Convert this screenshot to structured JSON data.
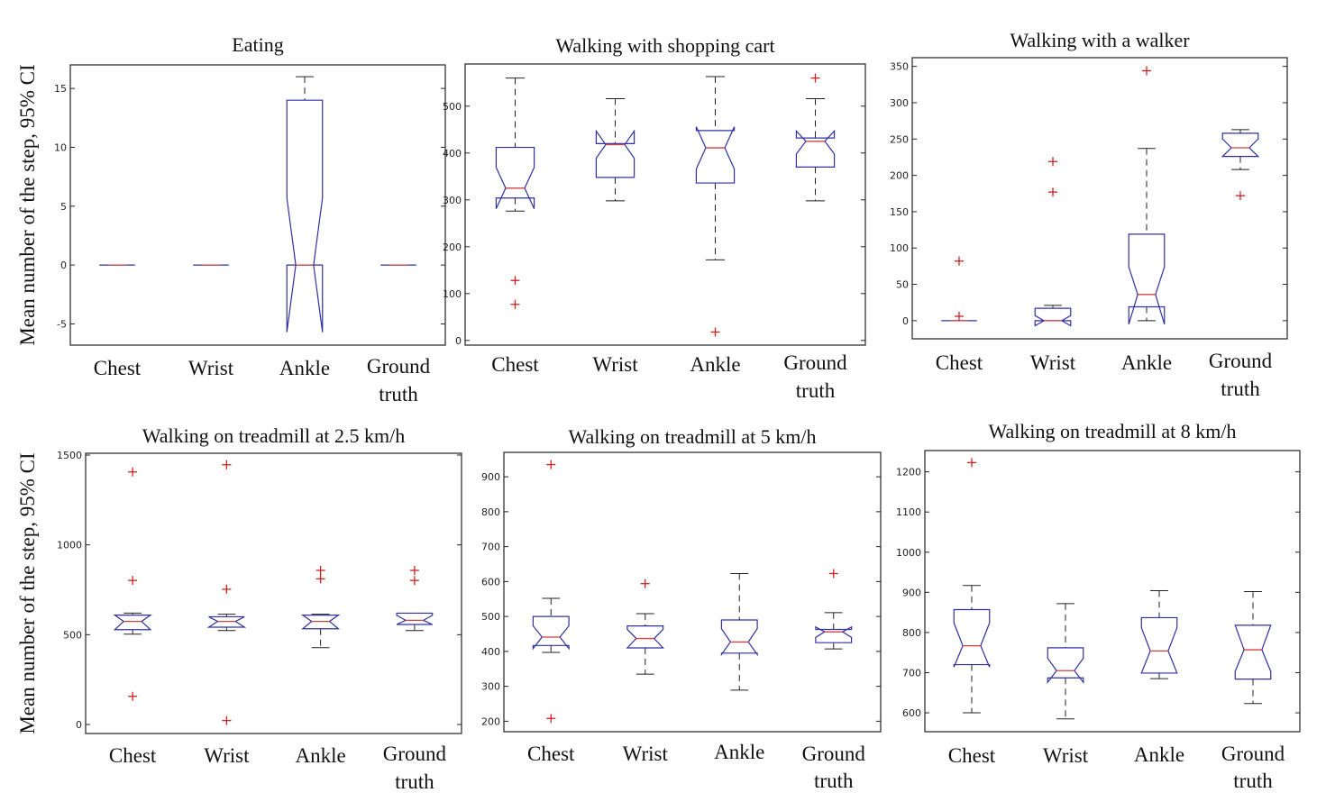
{
  "figure": {
    "ylabel": "Mean number of the step, 95% CI"
  },
  "chart_data": [
    {
      "type": "box",
      "title": "Eating",
      "ylabel": "Mean number of the step, 95% CI",
      "categories": [
        "Chest",
        "Wrist",
        "Ankle",
        "Ground truth"
      ],
      "ylim": [
        -6.8,
        17
      ],
      "yticks": [
        -5,
        0,
        5,
        10,
        15
      ],
      "ytick_labels": [
        "-5",
        "0",
        "5",
        "10",
        "15"
      ],
      "boxes": [
        {
          "whisker_low": 0,
          "q1": 0,
          "median": 0,
          "q3": 0,
          "whisker_high": 0,
          "notch_low": 0,
          "notch_high": 0,
          "outliers": []
        },
        {
          "whisker_low": 0,
          "q1": 0,
          "median": 0,
          "q3": 0,
          "whisker_high": 0,
          "notch_low": 0,
          "notch_high": 0,
          "outliers": []
        },
        {
          "whisker_low": 0,
          "q1": 0,
          "median": 0,
          "q3": 14,
          "whisker_high": 16,
          "notch_low": -5.7,
          "notch_high": 5.7,
          "outliers": []
        },
        {
          "whisker_low": 0,
          "q1": 0,
          "median": 0,
          "q3": 0,
          "whisker_high": 0,
          "notch_low": 0,
          "notch_high": 0,
          "outliers": []
        }
      ]
    },
    {
      "type": "box",
      "title": "Walking with shopping cart",
      "categories": [
        "Chest",
        "Wrist",
        "Ankle",
        "Ground truth"
      ],
      "ylim": [
        -10,
        590
      ],
      "yticks": [
        0,
        100,
        200,
        300,
        400,
        500
      ],
      "ytick_labels": [
        "0",
        "100",
        "200",
        "300",
        "400",
        "500"
      ],
      "boxes": [
        {
          "whisker_low": 276,
          "q1": 304,
          "median": 325,
          "q3": 412,
          "whisker_high": 560,
          "notch_low": 281,
          "notch_high": 369,
          "outliers": [
            128,
            77
          ]
        },
        {
          "whisker_low": 298,
          "q1": 348,
          "median": 418,
          "q3": 420,
          "whisker_high": 516,
          "notch_low": 389,
          "notch_high": 447,
          "outliers": []
        },
        {
          "whisker_low": 172,
          "q1": 336,
          "median": 411,
          "q3": 448,
          "whisker_high": 563,
          "notch_low": 366,
          "notch_high": 456,
          "outliers": [
            18
          ]
        },
        {
          "whisker_low": 298,
          "q1": 370,
          "median": 425,
          "q3": 432,
          "whisker_high": 516,
          "notch_low": 398,
          "notch_high": 447,
          "outliers": [
            560
          ]
        }
      ]
    },
    {
      "type": "box",
      "title": "Walking with a walker",
      "categories": [
        "Chest",
        "Wrist",
        "Ankle",
        "Ground truth"
      ],
      "ylim": [
        -25,
        362
      ],
      "yticks": [
        0,
        50,
        100,
        150,
        200,
        250,
        300,
        350
      ],
      "ytick_labels": [
        "0",
        "50",
        "100",
        "150",
        "200",
        "250",
        "300",
        "350"
      ],
      "boxes": [
        {
          "whisker_low": 0,
          "q1": 0,
          "median": 0,
          "q3": 0,
          "whisker_high": 0,
          "notch_low": 0,
          "notch_high": 0,
          "outliers": [
            82,
            6
          ]
        },
        {
          "whisker_low": 0,
          "q1": 0,
          "median": 0,
          "q3": 17,
          "whisker_high": 21,
          "notch_low": -7,
          "notch_high": 7,
          "outliers": [
            219,
            177
          ]
        },
        {
          "whisker_low": 0,
          "q1": 19,
          "median": 36,
          "q3": 119,
          "whisker_high": 237,
          "notch_low": -5,
          "notch_high": 74,
          "outliers": [
            344
          ]
        },
        {
          "whisker_low": 208,
          "q1": 226,
          "median": 238,
          "q3": 258,
          "whisker_high": 263,
          "notch_low": 226,
          "notch_high": 250,
          "outliers": [
            172
          ]
        }
      ]
    },
    {
      "type": "box",
      "title": "Walking on treadmill at 2.5 km/h",
      "ylabel": "Mean number of the step, 95% CI",
      "categories": [
        "Chest",
        "Wrist",
        "Ankle",
        "Ground truth"
      ],
      "ylim": [
        -50,
        1510
      ],
      "yticks": [
        0,
        500,
        1000,
        1500
      ],
      "ytick_labels": [
        "0",
        "500",
        "1000",
        "1500"
      ],
      "boxes": [
        {
          "whisker_low": 503,
          "q1": 528,
          "median": 574,
          "q3": 609,
          "whisker_high": 620,
          "notch_low": 528,
          "notch_high": 609,
          "outliers": [
            1406,
            802,
            157
          ]
        },
        {
          "whisker_low": 523,
          "q1": 542,
          "median": 574,
          "q3": 600,
          "whisker_high": 614,
          "notch_low": 542,
          "notch_high": 600,
          "outliers": [
            1446,
            753,
            22
          ]
        },
        {
          "whisker_low": 428,
          "q1": 533,
          "median": 574,
          "q3": 609,
          "whisker_high": 614,
          "notch_low": 533,
          "notch_high": 609,
          "outliers": [
            858,
            811
          ]
        },
        {
          "whisker_low": 523,
          "q1": 557,
          "median": 580,
          "q3": 620,
          "whisker_high": 620,
          "notch_low": 557,
          "notch_high": 608,
          "outliers": [
            858,
            802
          ]
        }
      ]
    },
    {
      "type": "box",
      "title": "Walking on treadmill at 5 km/h",
      "categories": [
        "Chest",
        "Wrist",
        "Ankle",
        "Ground truth"
      ],
      "ylim": [
        170,
        970
      ],
      "yticks": [
        200,
        300,
        400,
        500,
        600,
        700,
        800,
        900
      ],
      "ytick_labels": [
        "200",
        "300",
        "400",
        "500",
        "600",
        "700",
        "800",
        "900"
      ],
      "boxes": [
        {
          "whisker_low": 397,
          "q1": 417,
          "median": 441,
          "q3": 500,
          "whisker_high": 552,
          "notch_low": 408,
          "notch_high": 473,
          "outliers": [
            935,
            208
          ]
        },
        {
          "whisker_low": 335,
          "q1": 410,
          "median": 437,
          "q3": 473,
          "whisker_high": 508,
          "notch_low": 410,
          "notch_high": 463,
          "outliers": [
            594
          ]
        },
        {
          "whisker_low": 289,
          "q1": 395,
          "median": 427,
          "q3": 490,
          "whisker_high": 623,
          "notch_low": 391,
          "notch_high": 465,
          "outliers": []
        },
        {
          "whisker_low": 407,
          "q1": 425,
          "median": 456,
          "q3": 463,
          "whisker_high": 511,
          "notch_low": 440,
          "notch_high": 470,
          "outliers": [
            623
          ]
        }
      ]
    },
    {
      "type": "box",
      "title": "Walking on treadmill at 8 km/h",
      "categories": [
        "Chest",
        "Wrist",
        "Ankle",
        "Ground truth"
      ],
      "ylim": [
        553,
        1253
      ],
      "yticks": [
        600,
        700,
        800,
        900,
        1000,
        1100,
        1200
      ],
      "ytick_labels": [
        "600",
        "700",
        "800",
        "900",
        "1000",
        "1100",
        "1200"
      ],
      "boxes": [
        {
          "whisker_low": 600,
          "q1": 720,
          "median": 767,
          "q3": 857,
          "whisker_high": 917,
          "notch_low": 714,
          "notch_high": 824,
          "outliers": [
            1223
          ]
        },
        {
          "whisker_low": 585,
          "q1": 687,
          "median": 705,
          "q3": 762,
          "whisker_high": 872,
          "notch_low": 676,
          "notch_high": 736,
          "outliers": []
        },
        {
          "whisker_low": 685,
          "q1": 699,
          "median": 754,
          "q3": 837,
          "whisker_high": 904,
          "notch_low": 699,
          "notch_high": 812,
          "outliers": []
        },
        {
          "whisker_low": 623,
          "q1": 684,
          "median": 757,
          "q3": 818,
          "whisker_high": 902,
          "notch_low": 703,
          "notch_high": 818,
          "outliers": []
        }
      ]
    }
  ],
  "colors": {
    "box": "#3030a0",
    "median": "#d04040",
    "whisker": "#222222",
    "outlier": "#cc2222",
    "axis": "#222222"
  }
}
